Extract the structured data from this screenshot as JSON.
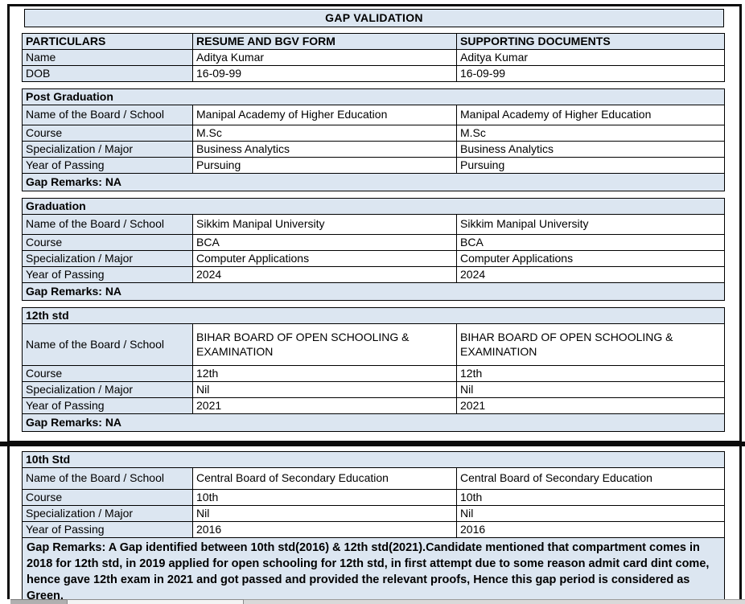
{
  "colors": {
    "cell_fill": "#dce6f1",
    "table_border": "#000000",
    "frame_border": "#0c0c0c",
    "page_background": "#ffffff",
    "text": "#000000"
  },
  "title": "GAP VALIDATION",
  "columns": [
    "PARTICULARS",
    "RESUME AND BGV FORM",
    "SUPPORTING DOCUMENTS"
  ],
  "identity": [
    {
      "label": "Name",
      "resume": "Aditya Kumar",
      "supporting": "Aditya Kumar"
    },
    {
      "label": "DOB",
      "resume": "16-09-99",
      "supporting": "16-09-99"
    }
  ],
  "sections": [
    {
      "title": "Post Graduation",
      "rows": [
        {
          "label": "Name of the Board / School",
          "resume": "Manipal Academy of Higher Education",
          "supporting": "Manipal Academy of Higher Education"
        },
        {
          "label": "Course",
          "resume": "M.Sc",
          "supporting": "M.Sc"
        },
        {
          "label": "Specialization / Major",
          "resume": "Business Analytics",
          "supporting": "Business Analytics"
        },
        {
          "label": "Year of Passing",
          "resume": "Pursuing",
          "supporting": "Pursuing"
        }
      ],
      "gap_remarks": "Gap Remarks: NA"
    },
    {
      "title": "Graduation",
      "rows": [
        {
          "label": "Name of the Board / School",
          "resume": "Sikkim Manipal University",
          "supporting": "Sikkim Manipal University"
        },
        {
          "label": "Course",
          "resume": "BCA",
          "supporting": "BCA"
        },
        {
          "label": "Specialization / Major",
          "resume": "Computer Applications",
          "supporting": "Computer Applications"
        },
        {
          "label": "Year of Passing",
          "resume": "2024",
          "supporting": "2024"
        }
      ],
      "gap_remarks": "Gap Remarks: NA"
    },
    {
      "title": "12th std",
      "rows": [
        {
          "label": "Name of the Board / School",
          "resume": "BIHAR BOARD OF OPEN SCHOOLING & EXAMINATION",
          "supporting": "BIHAR BOARD OF OPEN SCHOOLING & EXAMINATION"
        },
        {
          "label": "Course",
          "resume": "12th",
          "supporting": "12th"
        },
        {
          "label": "Specialization / Major",
          "resume": "Nil",
          "supporting": "Nil"
        },
        {
          "label": "Year of Passing",
          "resume": "2021",
          "supporting": "2021"
        }
      ],
      "gap_remarks": "Gap Remarks: NA"
    },
    {
      "title": "10th Std",
      "rows": [
        {
          "label": "Name of the Board / School",
          "resume": "Central Board of Secondary Education",
          "supporting": "Central Board of Secondary Education"
        },
        {
          "label": "Course",
          "resume": "10th",
          "supporting": "10th"
        },
        {
          "label": "Specialization / Major",
          "resume": "Nil",
          "supporting": "Nil"
        },
        {
          "label": "Year of Passing",
          "resume": "2016",
          "supporting": "2016"
        }
      ],
      "gap_remarks": "Gap Remarks: A Gap identified between 10th std(2016) & 12th std(2021).Candidate mentioned that compartment comes in 2018 for 12th std, in 2019 applied for open schooling for 12th std, in first attempt due to some reason admit card dint come, hence gave 12th exam in 2021 and got passed and provided the relevant proofs, Hence this gap period is considered as Green."
    }
  ]
}
